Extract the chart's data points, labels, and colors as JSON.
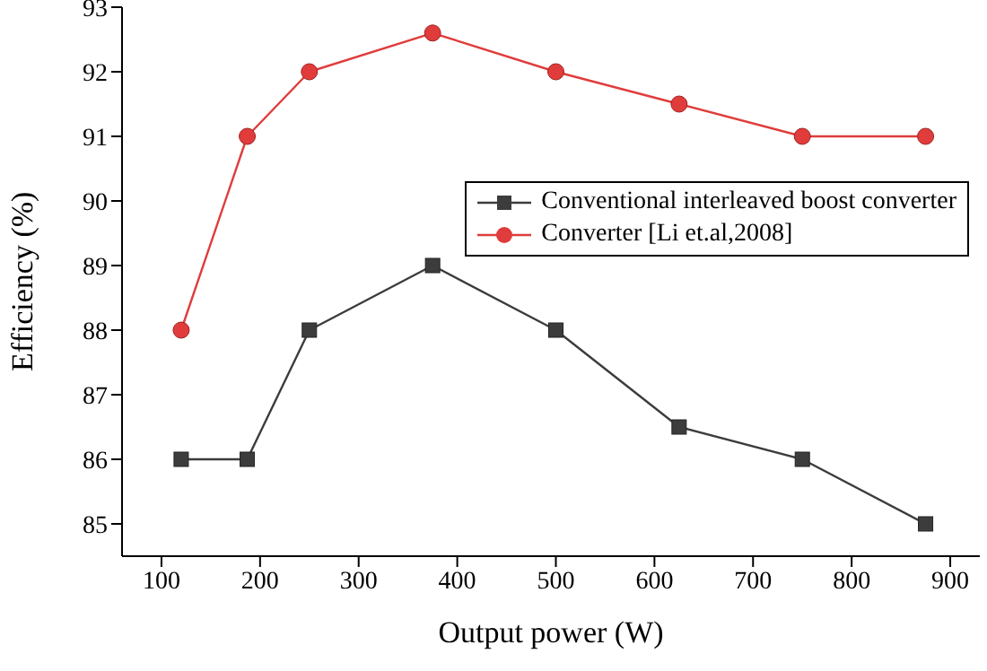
{
  "chart_data": {
    "type": "line",
    "xlabel": "Output power (W)",
    "ylabel": "Efficiency (%)",
    "x": [
      120,
      187,
      250,
      375,
      500,
      625,
      750,
      875
    ],
    "series": [
      {
        "name": "Conventional interleaved boost converter",
        "color": "#3c3c3c",
        "marker": "square",
        "values": [
          86,
          86,
          88,
          89,
          88,
          86.5,
          86,
          85
        ]
      },
      {
        "name": "Converter [Li et.al,2008]",
        "color": "#e03c3c",
        "marker": "circle",
        "values": [
          88,
          91,
          92,
          92.6,
          92,
          91.5,
          91,
          91
        ]
      }
    ],
    "xlim": [
      60,
      930
    ],
    "xticks": [
      100,
      200,
      300,
      400,
      500,
      600,
      700,
      800,
      900
    ],
    "ylim": [
      84.5,
      93
    ],
    "yticks": [
      85,
      86,
      87,
      88,
      89,
      90,
      91,
      92,
      93
    ],
    "grid": false,
    "legend": "top right",
    "line_style": "solid"
  }
}
